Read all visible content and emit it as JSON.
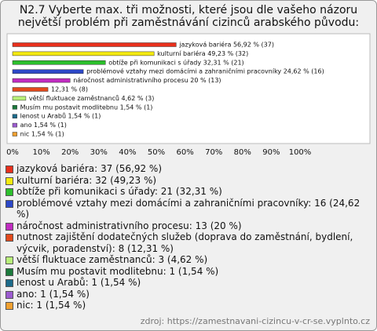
{
  "chart_data": {
    "type": "bar",
    "orientation": "horizontal",
    "title": "N2.7 Vyberte max. tři možnosti, které jsou dle vašeho názoru největší problém při zaměstnávání cizinců arabského původu:",
    "categories": [
      "jazyková bariéra",
      "kulturní bariéra",
      "obtíže při komunikaci s úřady",
      "problémové vztahy mezi domácími a zahraničními pracovníky",
      "náročnost administrativního procesu",
      "nutnost zajištění dodatečných služeb (doprava do zaměstnání, bydlení, výcvik, poradenství)",
      "větší fluktuace zaměstnanců",
      "Musím mu postavit modlitebnu",
      "lenost u Arabů",
      "ano",
      "nic"
    ],
    "values": [
      56.92,
      49.23,
      32.31,
      24.62,
      20,
      12.31,
      4.62,
      1.54,
      1.54,
      1.54,
      1.54
    ],
    "value_labels": [
      "jazyková bariéra 56,92 % (37)",
      "kulturní bariéra 49,23 % (32)",
      "obtíže při komunikaci s úřady 32,31 % (21)",
      "problémové vztahy mezi domácími a zahraničními pracovníky 24,62 % (16)",
      "náročnost administrativního procesu 20 % (13)",
      "12,31 % (8)",
      "větší fluktuace zaměstnanců 4,62 % (3)",
      "Musím mu postavit modlitebnu 1,54 % (1)",
      "lenost u Arabů 1,54 % (1)",
      "ano 1,54 % (1)",
      "nic 1,54 % (1)"
    ],
    "legend_labels": [
      "jazyková bariéra: 37 (56,92 %)",
      "kulturní bariéra: 32 (49,23 %)",
      "obtíže při komunikaci s úřady: 21 (32,31 %)",
      "problémové vztahy mezi domácími a zahraničními pracovníky: 16 (24,62 %)",
      "náročnost administrativního procesu: 13 (20 %)",
      "nutnost zajištění dodatečných služeb (doprava do zaměstnání, bydlení, výcvik, poradenství): 8 (12,31 %)",
      "větší fluktuace zaměstnanců: 3 (4,62 %)",
      "Musím mu postavit modlitebnu: 1 (1,54 %)",
      "lenost u Arabů: 1 (1,54 %)",
      "ano: 1 (1,54 %)",
      "nic: 1 (1,54 %)"
    ],
    "colors": [
      "#e8301c",
      "#f4ea10",
      "#2cbf2c",
      "#2c48c8",
      "#c02cc0",
      "#e24a1c",
      "#b8f07a",
      "#1c7a3c",
      "#1c6a8a",
      "#9c5cd0",
      "#f0a030"
    ],
    "xlim": [
      0,
      100
    ],
    "xticks": [
      {
        "value": 0,
        "label": "0%"
      },
      {
        "value": 10,
        "label": "10%"
      },
      {
        "value": 20,
        "label": "20%"
      },
      {
        "value": 30,
        "label": "30%"
      },
      {
        "value": 40,
        "label": "40%"
      },
      {
        "value": 50,
        "label": "50%"
      },
      {
        "value": 60,
        "label": "60%"
      },
      {
        "value": 70,
        "label": "70%"
      },
      {
        "value": 80,
        "label": "80%"
      },
      {
        "value": 90,
        "label": "90%"
      },
      {
        "value": 100,
        "label": "100%"
      }
    ],
    "grid": false,
    "source": "zdroj: https://zamestnavani-cizincu-v-cr-se.vyplnto.cz"
  }
}
